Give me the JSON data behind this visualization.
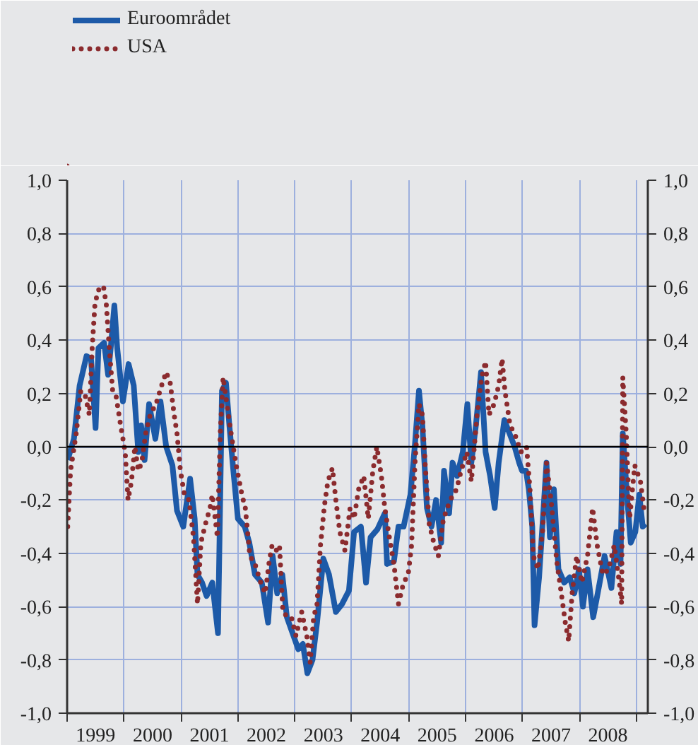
{
  "chart_data": {
    "type": "line",
    "xlim": [
      1999,
      2009.2
    ],
    "ylim": [
      -1.0,
      1.0
    ],
    "y2lim": [
      -1.0,
      1.0
    ],
    "xticks": [
      {
        "value": 1999,
        "label": null
      },
      {
        "value": 2000,
        "label": null
      },
      {
        "value": 2001,
        "label": null
      },
      {
        "value": 2002,
        "label": null
      },
      {
        "value": 2003,
        "label": null
      },
      {
        "value": 2004,
        "label": null
      },
      {
        "value": 2005,
        "label": null
      },
      {
        "value": 2006,
        "label": null
      },
      {
        "value": 2007,
        "label": null
      },
      {
        "value": 2008,
        "label": null
      },
      {
        "value": 2009,
        "label": null
      },
      {
        "value": 1999.5,
        "label": "1999"
      },
      {
        "value": 2000.5,
        "label": "2000"
      },
      {
        "value": 2001.5,
        "label": "2001"
      },
      {
        "value": 2002.5,
        "label": "2002"
      },
      {
        "value": 2003.5,
        "label": "2003"
      },
      {
        "value": 2004.5,
        "label": "2004"
      },
      {
        "value": 2005.5,
        "label": "2005"
      },
      {
        "value": 2006.5,
        "label": "2006"
      },
      {
        "value": 2007.5,
        "label": "2007"
      },
      {
        "value": 2008.5,
        "label": "2008"
      }
    ],
    "yticks": [
      {
        "value": -1.0,
        "label": "-1,0"
      },
      {
        "value": -0.8,
        "label": "-0,8"
      },
      {
        "value": -0.6,
        "label": "-0,6"
      },
      {
        "value": -0.4,
        "label": "-0,4"
      },
      {
        "value": -0.2,
        "label": "-0,2"
      },
      {
        "value": 0.0,
        "label": "0,0"
      },
      {
        "value": 0.2,
        "label": "0,2"
      },
      {
        "value": 0.4,
        "label": "0,4"
      },
      {
        "value": 0.6,
        "label": "0,6"
      },
      {
        "value": 0.8,
        "label": "0,8"
      },
      {
        "value": 1.0,
        "label": "1,0"
      }
    ],
    "y2ticks": [
      {
        "value": -1.0,
        "label": "-1,0"
      },
      {
        "value": -0.8,
        "label": "-0,8"
      },
      {
        "value": -0.6,
        "label": "-0,6"
      },
      {
        "value": -0.4,
        "label": "-0,4"
      },
      {
        "value": -0.2,
        "label": "-0,2"
      },
      {
        "value": 0.0,
        "label": "0,0"
      },
      {
        "value": 0.2,
        "label": "0,2"
      },
      {
        "value": 0.4,
        "label": "0,4"
      },
      {
        "value": 0.6,
        "label": "0,6"
      },
      {
        "value": 0.8,
        "label": "0,8"
      },
      {
        "value": 1.0,
        "label": "1,0"
      }
    ],
    "grid": true,
    "legend": "top left",
    "ref_lines": [
      {
        "axis": "y",
        "value": 0.0,
        "color": "#000000"
      }
    ],
    "series": [
      {
        "name": "Euroområdet",
        "color": "#1d5aa8",
        "line_style": "solid",
        "x": [
          1999.01,
          1999.12,
          1999.22,
          1999.34,
          1999.42,
          1999.5,
          1999.55,
          1999.65,
          1999.72,
          1999.77,
          1999.83,
          1999.88,
          1999.98,
          2000.08,
          2000.17,
          2000.25,
          2000.3,
          2000.36,
          2000.44,
          2000.55,
          2000.64,
          2000.74,
          2000.85,
          2000.93,
          2001.04,
          2001.16,
          2001.24,
          2001.29,
          2001.37,
          2001.45,
          2001.55,
          2001.65,
          2001.72,
          2001.79,
          2001.85,
          2001.92,
          2002.0,
          2002.12,
          2002.2,
          2002.3,
          2002.42,
          2002.53,
          2002.61,
          2002.69,
          2002.78,
          2002.86,
          2002.96,
          2003.06,
          2003.14,
          2003.22,
          2003.31,
          2003.39,
          2003.5,
          2003.6,
          2003.72,
          2003.83,
          2003.95,
          2004.04,
          2004.16,
          2004.25,
          2004.33,
          2004.45,
          2004.58,
          2004.62,
          2004.74,
          2004.82,
          2004.91,
          2005.03,
          2005.11,
          2005.18,
          2005.24,
          2005.32,
          2005.4,
          2005.48,
          2005.57,
          2005.62,
          2005.71,
          2005.77,
          2005.85,
          2005.95,
          2006.03,
          2006.1,
          2006.18,
          2006.27,
          2006.35,
          2006.43,
          2006.51,
          2006.58,
          2006.68,
          2006.77,
          2006.86,
          2006.94,
          2006.99,
          2007.06,
          2007.11,
          2007.17,
          2007.21,
          2007.29,
          2007.42,
          2007.48,
          2007.55,
          2007.63,
          2007.73,
          2007.83,
          2007.91,
          2007.99,
          2008.06,
          2008.14,
          2008.24,
          2008.32,
          2008.44,
          2008.56,
          2008.65,
          2008.72,
          2008.76,
          2008.84,
          2008.9,
          2008.98,
          2009.05,
          2009.11,
          2009.16
        ],
        "values": [
          -0.05,
          0.03,
          0.23,
          0.34,
          0.33,
          0.07,
          0.37,
          0.39,
          0.27,
          0.38,
          0.53,
          0.37,
          0.17,
          0.31,
          0.23,
          -0.02,
          0.08,
          -0.05,
          0.16,
          0.03,
          0.17,
          0.0,
          -0.07,
          -0.24,
          -0.3,
          -0.12,
          -0.27,
          -0.48,
          -0.51,
          -0.56,
          -0.51,
          -0.7,
          0.21,
          0.24,
          0.08,
          -0.09,
          -0.27,
          -0.3,
          -0.36,
          -0.48,
          -0.51,
          -0.66,
          -0.41,
          -0.55,
          -0.48,
          -0.64,
          -0.7,
          -0.76,
          -0.74,
          -0.85,
          -0.8,
          -0.66,
          -0.42,
          -0.48,
          -0.62,
          -0.59,
          -0.54,
          -0.32,
          -0.3,
          -0.51,
          -0.34,
          -0.31,
          -0.25,
          -0.44,
          -0.43,
          -0.3,
          -0.3,
          -0.18,
          0.01,
          0.21,
          0.08,
          -0.23,
          -0.3,
          -0.2,
          -0.36,
          -0.09,
          -0.25,
          -0.06,
          -0.11,
          -0.02,
          0.16,
          -0.06,
          0.08,
          0.28,
          -0.02,
          -0.11,
          -0.23,
          -0.06,
          0.1,
          0.05,
          0.0,
          -0.06,
          -0.09,
          -0.09,
          -0.16,
          -0.3,
          -0.67,
          -0.49,
          -0.06,
          -0.34,
          -0.16,
          -0.46,
          -0.51,
          -0.49,
          -0.55,
          -0.46,
          -0.6,
          -0.46,
          -0.64,
          -0.55,
          -0.41,
          -0.53,
          -0.32,
          -0.44,
          0.05,
          -0.2,
          -0.36,
          -0.32,
          -0.18,
          -0.3,
          -0.29
        ]
      },
      {
        "name": "USA",
        "color": "#8b2b2e",
        "line_style": "dotted",
        "x": [
          1999.01,
          1999.06,
          1999.16,
          1999.24,
          1999.32,
          1999.39,
          1999.44,
          1999.49,
          1999.57,
          1999.64,
          1999.69,
          1999.74,
          1999.8,
          1999.86,
          1999.94,
          2000.02,
          2000.07,
          2000.13,
          2000.19,
          2000.25,
          2000.31,
          2000.38,
          2000.46,
          2000.56,
          2000.66,
          2000.74,
          2000.81,
          2000.88,
          2000.93,
          2000.99,
          2001.06,
          2001.14,
          2001.22,
          2001.29,
          2001.35,
          2001.43,
          2001.51,
          2001.55,
          2001.64,
          2001.69,
          2001.74,
          2001.8,
          2001.88,
          2001.97,
          2002.07,
          2002.13,
          2002.21,
          2002.3,
          2002.4,
          2002.48,
          2002.55,
          2002.6,
          2002.67,
          2002.73,
          2002.79,
          2002.88,
          2002.94,
          2003.02,
          2003.12,
          2003.21,
          2003.27,
          2003.33,
          2003.39,
          2003.45,
          2003.52,
          2003.58,
          2003.66,
          2003.72,
          2003.79,
          2003.88,
          2003.97,
          2004.04,
          2004.12,
          2004.21,
          2004.29,
          2004.37,
          2004.44,
          2004.52,
          2004.58,
          2004.66,
          2004.74,
          2004.82,
          2004.91,
          2004.99,
          2005.05,
          2005.11,
          2005.18,
          2005.24,
          2005.29,
          2005.36,
          2005.44,
          2005.52,
          2005.61,
          2005.73,
          2005.84,
          2005.92,
          2006.02,
          2006.1,
          2006.2,
          2006.28,
          2006.35,
          2006.41,
          2006.5,
          2006.58,
          2006.64,
          2006.69,
          2006.78,
          2006.86,
          2006.97,
          2007.07,
          2007.13,
          2007.19,
          2007.27,
          2007.35,
          2007.42,
          2007.5,
          2007.6,
          2007.68,
          2007.75,
          2007.81,
          2007.87,
          2007.95,
          2008.04,
          2008.14,
          2008.23,
          2008.31,
          2008.41,
          2008.51,
          2008.61,
          2008.7,
          2008.74,
          2008.76,
          2008.82,
          2008.88,
          2008.97,
          2009.07,
          2009.13
        ],
        "values": [
          -0.3,
          -0.09,
          0.05,
          0.21,
          0.19,
          0.12,
          0.37,
          0.54,
          0.6,
          0.6,
          0.53,
          0.37,
          0.21,
          0.19,
          0.08,
          -0.02,
          -0.2,
          -0.13,
          0.0,
          -0.09,
          -0.06,
          0.05,
          0.12,
          0.16,
          0.23,
          0.28,
          0.24,
          0.12,
          0.05,
          -0.09,
          -0.18,
          -0.2,
          -0.34,
          -0.59,
          -0.36,
          -0.29,
          -0.23,
          -0.18,
          -0.34,
          0.05,
          0.26,
          0.17,
          0.05,
          -0.07,
          -0.18,
          -0.23,
          -0.41,
          -0.44,
          -0.51,
          -0.55,
          -0.43,
          -0.37,
          -0.39,
          -0.37,
          -0.62,
          -0.64,
          -0.64,
          -0.71,
          -0.62,
          -0.71,
          -0.81,
          -0.64,
          -0.59,
          -0.37,
          -0.22,
          -0.13,
          -0.08,
          -0.2,
          -0.32,
          -0.39,
          -0.23,
          -0.27,
          -0.16,
          -0.11,
          -0.27,
          -0.09,
          0.0,
          -0.11,
          -0.23,
          -0.34,
          -0.44,
          -0.59,
          -0.51,
          -0.48,
          -0.37,
          -0.06,
          0.16,
          0.12,
          -0.07,
          -0.29,
          -0.36,
          -0.41,
          -0.27,
          -0.2,
          -0.16,
          -0.09,
          -0.02,
          -0.13,
          0.12,
          0.26,
          0.32,
          0.12,
          0.16,
          0.23,
          0.33,
          0.21,
          0.08,
          0.05,
          -0.02,
          0.0,
          -0.16,
          -0.41,
          -0.46,
          -0.32,
          -0.06,
          -0.2,
          -0.43,
          -0.55,
          -0.66,
          -0.73,
          -0.55,
          -0.41,
          -0.51,
          -0.41,
          -0.23,
          -0.37,
          -0.48,
          -0.46,
          -0.37,
          -0.51,
          -0.59,
          0.26,
          0.05,
          -0.27,
          -0.07,
          -0.13,
          -0.23
        ]
      }
    ]
  }
}
